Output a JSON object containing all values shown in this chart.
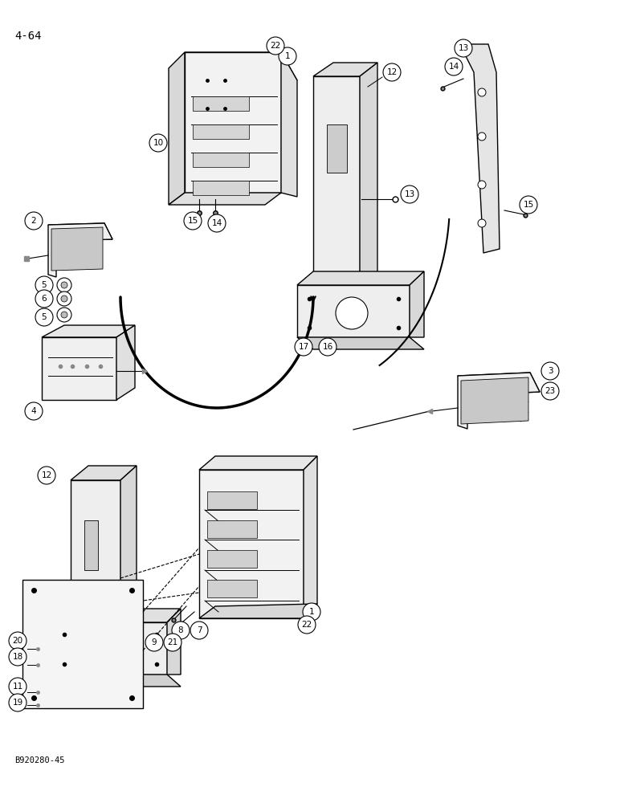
{
  "page_label": "4-64",
  "footer_text": "B920280-45",
  "background_color": "#ffffff",
  "line_color": "#000000",
  "figsize": [
    7.72,
    10.0
  ],
  "dpi": 100
}
